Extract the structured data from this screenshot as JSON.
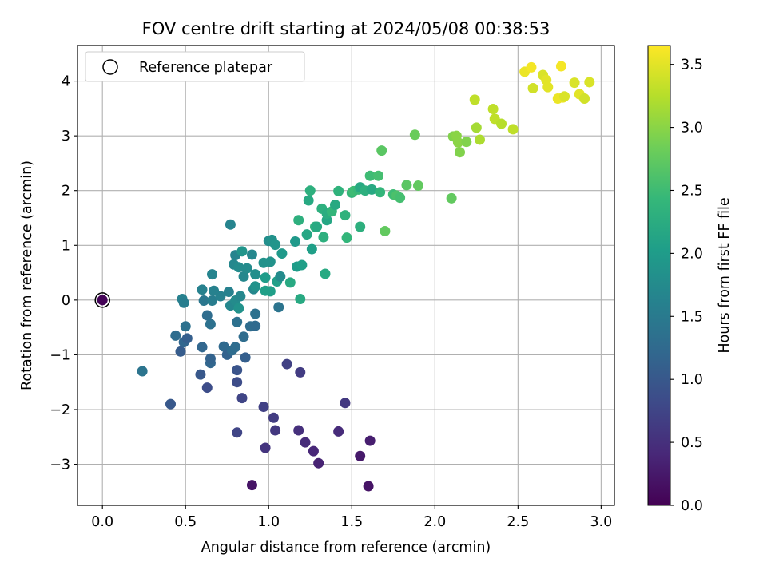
{
  "chart_data": {
    "type": "scatter",
    "title": "FOV centre drift starting at 2024/05/08 00:38:53",
    "xlabel": "Angular distance from reference (arcmin)",
    "ylabel": "Rotation from reference (arcmin)",
    "xlim": [
      -0.15,
      3.08
    ],
    "ylim": [
      -3.75,
      4.65
    ],
    "xticks": [
      "0.0",
      "0.5",
      "1.0",
      "1.5",
      "2.0",
      "2.5",
      "3.0"
    ],
    "yticks": [
      "−3",
      "−2",
      "−1",
      "0",
      "1",
      "2",
      "3",
      "4"
    ],
    "grid": true,
    "legend": {
      "position": "top-left",
      "entries": [
        "Reference platepar"
      ]
    },
    "reference_point": {
      "x": 0.0,
      "y": 0.0
    },
    "colorbar": {
      "label": "Hours from first FF file",
      "colormap": "viridis",
      "range": [
        0.0,
        3.65
      ],
      "ticks": [
        "0.0",
        "0.5",
        "1.0",
        "1.5",
        "2.0",
        "2.5",
        "3.0",
        "3.5"
      ]
    },
    "points": [
      [
        0.0,
        0.0,
        0.03
      ],
      [
        0.9,
        -3.38,
        0.2
      ],
      [
        1.6,
        -3.4,
        0.2
      ],
      [
        1.55,
        -2.85,
        0.25
      ],
      [
        1.61,
        -2.57,
        0.3
      ],
      [
        1.3,
        -2.98,
        0.35
      ],
      [
        1.27,
        -2.76,
        0.4
      ],
      [
        1.22,
        -2.6,
        0.45
      ],
      [
        1.42,
        -2.4,
        0.45
      ],
      [
        0.98,
        -2.7,
        0.55
      ],
      [
        1.18,
        -2.38,
        0.5
      ],
      [
        1.04,
        -2.38,
        0.6
      ],
      [
        1.03,
        -2.15,
        0.65
      ],
      [
        0.97,
        -1.95,
        0.7
      ],
      [
        1.46,
        -1.88,
        0.6
      ],
      [
        1.19,
        -1.32,
        0.65
      ],
      [
        1.11,
        -1.17,
        0.7
      ],
      [
        0.84,
        -1.79,
        0.75
      ],
      [
        0.81,
        -2.42,
        0.75
      ],
      [
        0.81,
        -1.5,
        0.85
      ],
      [
        0.81,
        -1.28,
        0.95
      ],
      [
        0.63,
        -1.6,
        0.85
      ],
      [
        0.59,
        -1.36,
        1.0
      ],
      [
        0.41,
        -1.9,
        1.0
      ],
      [
        0.24,
        -1.3,
        1.4
      ],
      [
        0.65,
        -1.15,
        1.2
      ],
      [
        0.65,
        -1.07,
        1.15
      ],
      [
        0.47,
        -0.94,
        1.05
      ],
      [
        0.49,
        -0.77,
        1.2
      ],
      [
        0.51,
        -0.7,
        1.1
      ],
      [
        0.44,
        -0.65,
        1.3
      ],
      [
        0.6,
        -0.86,
        1.2
      ],
      [
        0.73,
        -0.85,
        1.25
      ],
      [
        0.75,
        -1.0,
        1.15
      ],
      [
        0.78,
        -0.92,
        1.3
      ],
      [
        0.86,
        -1.05,
        1.1
      ],
      [
        0.8,
        -0.86,
        1.3
      ],
      [
        0.81,
        -0.4,
        1.35
      ],
      [
        0.85,
        -0.67,
        1.3
      ],
      [
        0.89,
        -0.48,
        1.3
      ],
      [
        0.92,
        -0.47,
        1.25
      ],
      [
        0.92,
        -0.25,
        1.35
      ],
      [
        0.5,
        -0.48,
        1.35
      ],
      [
        0.63,
        -0.28,
        1.3
      ],
      [
        0.65,
        -0.44,
        1.35
      ],
      [
        1.06,
        -0.13,
        1.4
      ],
      [
        0.48,
        0.02,
        1.6
      ],
      [
        0.49,
        -0.05,
        1.55
      ],
      [
        0.61,
        -0.01,
        1.45
      ],
      [
        0.66,
        -0.01,
        1.55
      ],
      [
        0.71,
        0.07,
        1.6
      ],
      [
        0.76,
        0.15,
        1.6
      ],
      [
        0.77,
        -0.1,
        1.7
      ],
      [
        0.8,
        -0.01,
        1.75
      ],
      [
        0.82,
        -0.15,
        1.85
      ],
      [
        0.83,
        0.07,
        1.7
      ],
      [
        0.6,
        0.19,
        1.6
      ],
      [
        0.67,
        0.17,
        1.6
      ],
      [
        0.66,
        0.47,
        1.65
      ],
      [
        0.77,
        1.38,
        1.65
      ],
      [
        0.79,
        0.65,
        1.7
      ],
      [
        0.8,
        0.82,
        1.65
      ],
      [
        0.82,
        0.6,
        1.75
      ],
      [
        0.85,
        0.43,
        1.7
      ],
      [
        0.87,
        0.58,
        1.75
      ],
      [
        0.84,
        0.89,
        1.9
      ],
      [
        0.9,
        0.83,
        1.7
      ],
      [
        0.91,
        0.2,
        1.7
      ],
      [
        0.92,
        0.25,
        1.85
      ],
      [
        0.92,
        0.47,
        1.8
      ],
      [
        0.97,
        0.68,
        1.85
      ],
      [
        0.98,
        0.41,
        2.0
      ],
      [
        0.98,
        0.17,
        2.05
      ],
      [
        1.01,
        0.16,
        2.05
      ],
      [
        1.0,
        1.08,
        1.8
      ],
      [
        1.01,
        0.7,
        1.85
      ],
      [
        1.02,
        1.1,
        1.85
      ],
      [
        1.04,
        1.01,
        1.9
      ],
      [
        1.05,
        0.34,
        2.05
      ],
      [
        1.07,
        0.43,
        1.75
      ],
      [
        1.08,
        0.85,
        1.95
      ],
      [
        1.13,
        0.32,
        2.2
      ],
      [
        1.16,
        1.07,
        1.95
      ],
      [
        1.17,
        0.61,
        2.0
      ],
      [
        1.19,
        0.02,
        2.2
      ],
      [
        1.18,
        1.46,
        2.3
      ],
      [
        1.2,
        0.64,
        2.05
      ],
      [
        1.23,
        1.2,
        2.15
      ],
      [
        1.24,
        1.82,
        2.2
      ],
      [
        1.25,
        2.0,
        2.3
      ],
      [
        1.26,
        0.93,
        2.05
      ],
      [
        1.28,
        1.34,
        2.3
      ],
      [
        1.29,
        1.34,
        2.2
      ],
      [
        1.32,
        1.67,
        2.3
      ],
      [
        1.33,
        1.15,
        2.3
      ],
      [
        1.34,
        0.48,
        2.2
      ],
      [
        1.35,
        1.46,
        2.15
      ],
      [
        1.35,
        1.58,
        2.25
      ],
      [
        1.38,
        1.62,
        2.4
      ],
      [
        1.4,
        1.74,
        2.2
      ],
      [
        1.42,
        1.99,
        2.35
      ],
      [
        1.46,
        1.55,
        2.35
      ],
      [
        1.47,
        1.14,
        2.4
      ],
      [
        1.5,
        1.96,
        2.4
      ],
      [
        1.51,
        1.99,
        2.5
      ],
      [
        1.54,
        2.02,
        2.45
      ],
      [
        1.55,
        2.06,
        2.2
      ],
      [
        1.55,
        1.34,
        2.3
      ],
      [
        1.58,
        2.0,
        2.3
      ],
      [
        1.61,
        2.27,
        2.5
      ],
      [
        1.62,
        2.02,
        2.2
      ],
      [
        1.66,
        2.27,
        2.55
      ],
      [
        1.67,
        1.97,
        2.4
      ],
      [
        1.68,
        2.73,
        2.7
      ],
      [
        1.7,
        1.26,
        2.75
      ],
      [
        1.75,
        1.93,
        2.5
      ],
      [
        1.77,
        1.91,
        2.6
      ],
      [
        1.79,
        1.87,
        2.55
      ],
      [
        1.83,
        2.1,
        2.7
      ],
      [
        1.88,
        3.02,
        2.8
      ],
      [
        1.9,
        2.09,
        2.75
      ],
      [
        2.1,
        1.86,
        2.75
      ],
      [
        2.11,
        2.99,
        2.95
      ],
      [
        2.13,
        3.0,
        3.0
      ],
      [
        2.14,
        2.88,
        3.0
      ],
      [
        2.15,
        2.7,
        2.95
      ],
      [
        2.19,
        2.89,
        2.95
      ],
      [
        2.24,
        3.66,
        3.3
      ],
      [
        2.25,
        3.15,
        3.15
      ],
      [
        2.27,
        2.93,
        3.2
      ],
      [
        2.35,
        3.49,
        3.3
      ],
      [
        2.36,
        3.31,
        3.3
      ],
      [
        2.4,
        3.22,
        3.25
      ],
      [
        2.47,
        3.12,
        3.3
      ],
      [
        2.54,
        4.17,
        3.55
      ],
      [
        2.58,
        4.25,
        3.6
      ],
      [
        2.59,
        3.87,
        3.4
      ],
      [
        2.65,
        4.11,
        3.45
      ],
      [
        2.67,
        4.02,
        3.5
      ],
      [
        2.68,
        3.89,
        3.5
      ],
      [
        2.74,
        3.68,
        3.55
      ],
      [
        2.76,
        4.27,
        3.6
      ],
      [
        2.77,
        3.7,
        3.55
      ],
      [
        2.78,
        3.72,
        3.45
      ],
      [
        2.84,
        3.97,
        3.45
      ],
      [
        2.87,
        3.76,
        3.5
      ],
      [
        2.9,
        3.68,
        3.4
      ],
      [
        2.93,
        3.98,
        3.45
      ]
    ]
  }
}
